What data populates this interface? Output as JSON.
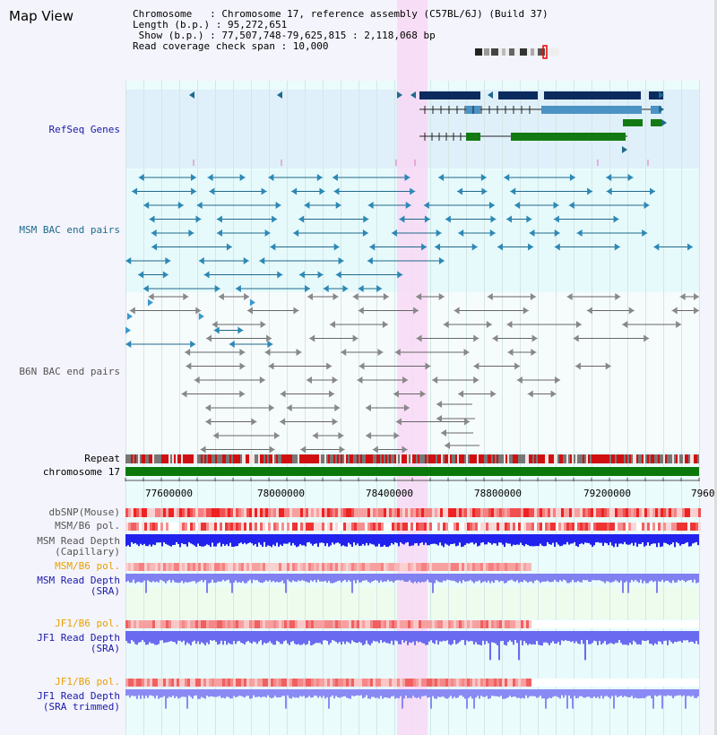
{
  "header": {
    "title": "Map View",
    "chromosome_line": "Chromosome   : Chromosome 17, reference assembly (C57BL/6J) (Build 37)",
    "length_line": "Length (b.p.) : 95,272,651",
    "show_line": " Show (b.p.) : 77,507,748-79,625,815 : 2,118,068 bp",
    "coverage_line": "Read coverage check span : 10,000"
  },
  "tracks": {
    "refseq": "RefSeq Genes",
    "msm_bac": "MSM BAC end pairs",
    "b6n_bac": "B6N BAC end pairs",
    "repeat": "Repeat",
    "chromosome": "chromosome 17",
    "dbsnp": "dbSNP(Mouse)",
    "msm_b6_pol": "MSM/B6 pol.",
    "msm_depth_cap": "MSM Read Depth\n(Capillary)",
    "msm_b6_pol2": "MSM/B6 pol.",
    "msm_depth_sra": "MSM Read Depth\n(SRA)",
    "jf1_b6_pol": "JF1/B6 pol.",
    "jf1_depth_sra": "JF1 Read Depth\n(SRA)",
    "jf1_b6_pol2": "JF1/B6 pol.",
    "jf1_depth_trim": "JF1 Read Depth\n(SRA trimmed)"
  },
  "axis": {
    "ticks": [
      "77600000",
      "78000000",
      "78400000",
      "78800000",
      "79200000",
      "7960"
    ]
  },
  "colors": {
    "highlight": "#f8d8f4",
    "refseq_bg": "#dff0fa",
    "msm_color": "#1f6a8a",
    "b6n_color": "#666666",
    "gene_dark": "#0b2a5e",
    "gene_light": "#4a93c4",
    "gene_green": "#137a13",
    "depth_blue": "#2222ee",
    "depth_light": "#7070f0",
    "pol_red": "#ee2222",
    "orange_label": "#e8a000",
    "navy_label": "#1a1aaa"
  }
}
